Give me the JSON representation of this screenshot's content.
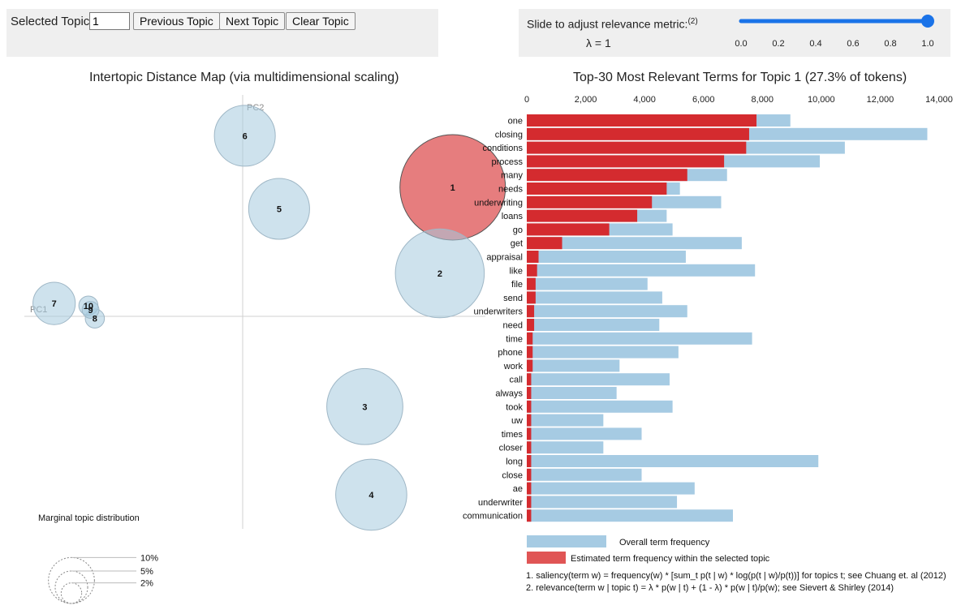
{
  "controls": {
    "selected_topic_label": "Selected Topic:",
    "selected_topic_value": "1",
    "prev_label": "Previous Topic",
    "next_label": "Next Topic",
    "clear_label": "Clear Topic",
    "slider_label": "Slide to adjust relevance metric:",
    "slider_note": "(2)",
    "lambda_text": "λ = 1",
    "slider_value": 1.0,
    "slider_min": 0.0,
    "slider_max": 1.0,
    "slider_ticks": [
      "0.0",
      "0.2",
      "0.4",
      "0.6",
      "0.8",
      "1.0"
    ],
    "accent": "#1a73e8"
  },
  "colors": {
    "topic_bubble": "#a6cadf",
    "selected_bubble": "#d62728",
    "overall_bar": "#a6cbe3",
    "topic_bar": "#d42b2f"
  },
  "chart_data": [
    {
      "type": "scatter",
      "title": "Intertopic Distance Map (via multidimensional scaling)",
      "xlabel": "PC1",
      "ylabel": "PC2",
      "xlim": [
        -1,
        1
      ],
      "ylim": [
        -1,
        1
      ],
      "selected_topic": 1,
      "topics": [
        {
          "id": "1",
          "pc1": 0.98,
          "pc2": 0.6,
          "size": 27.3
        },
        {
          "id": "2",
          "pc1": 0.92,
          "pc2": 0.2,
          "size": 19.4
        },
        {
          "id": "3",
          "pc1": 0.57,
          "pc2": -0.42,
          "size": 14.2
        },
        {
          "id": "4",
          "pc1": 0.6,
          "pc2": -0.83,
          "size": 12.4
        },
        {
          "id": "5",
          "pc1": 0.17,
          "pc2": 0.5,
          "size": 9.1
        },
        {
          "id": "6",
          "pc1": 0.01,
          "pc2": 0.84,
          "size": 9.1
        },
        {
          "id": "7",
          "pc1": -0.88,
          "pc2": 0.06,
          "size": 4.4
        },
        {
          "id": "8",
          "pc1": -0.69,
          "pc2": -0.01,
          "size": 0.9
        },
        {
          "id": "9",
          "pc1": -0.71,
          "pc2": 0.03,
          "size": 0.7
        },
        {
          "id": "10",
          "pc1": -0.72,
          "pc2": 0.05,
          "size": 0.9
        }
      ],
      "legend": {
        "title": "Marginal topic distribution",
        "labels": [
          "2%",
          "5%",
          "10%"
        ],
        "values": [
          2,
          5,
          10
        ]
      }
    },
    {
      "type": "bar",
      "orientation": "horizontal",
      "title": "Top-30 Most Relevant Terms for Topic 1 (27.3% of tokens)",
      "xlim": [
        0,
        14000
      ],
      "xticks": [
        "0",
        "2,000",
        "4,000",
        "6,000",
        "8,000",
        "10,000",
        "12,000",
        "14,000"
      ],
      "xtick_values": [
        0,
        2000,
        4000,
        6000,
        8000,
        10000,
        12000,
        14000
      ],
      "categories": [
        "one",
        "closing",
        "conditions",
        "process",
        "many",
        "needs",
        "underwriting",
        "loans",
        "go",
        "get",
        "appraisal",
        "like",
        "file",
        "send",
        "underwriters",
        "need",
        "time",
        "phone",
        "work",
        "call",
        "always",
        "took",
        "uw",
        "times",
        "closer",
        "long",
        "close",
        "ae",
        "underwriter",
        "communication"
      ],
      "series": [
        {
          "name": "Overall term frequency",
          "values": [
            8950,
            13600,
            10800,
            9950,
            6800,
            5200,
            6600,
            4750,
            4950,
            7300,
            5400,
            7750,
            4100,
            4600,
            5450,
            4500,
            7650,
            5150,
            3150,
            4850,
            3050,
            4950,
            2600,
            3900,
            2600,
            9900,
            3900,
            5700,
            5100,
            7000
          ]
        },
        {
          "name": "Estimated term frequency within the selected topic",
          "values": [
            7800,
            7550,
            7450,
            6700,
            5450,
            4750,
            4250,
            3750,
            2800,
            1200,
            400,
            350,
            300,
            300,
            250,
            250,
            200,
            200,
            200,
            150,
            150,
            150,
            150,
            150,
            150,
            150,
            150,
            150,
            150,
            150
          ]
        }
      ],
      "legend": [
        "Overall term frequency",
        "Estimated term frequency within the selected topic"
      ]
    }
  ],
  "footnotes": [
    "1. saliency(term w) = frequency(w) * [sum_t p(t | w) * log(p(t | w)/p(t))] for topics t; see Chuang et. al (2012)",
    "2. relevance(term w | topic t) = λ * p(w | t) + (1 - λ) * p(w | t)/p(w); see Sievert & Shirley (2014)"
  ]
}
